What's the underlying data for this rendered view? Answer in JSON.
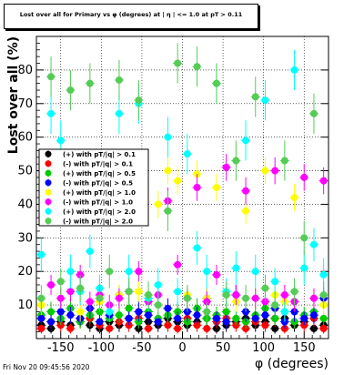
{
  "title": "Lost over all for Primary vs φ (degrees) at | η | <= 1.0 at pT > 0.11",
  "footer": "Fri Nov 20 09:45:56 2020",
  "chart_data": {
    "type": "scatter",
    "title": "Lost over all for Primary vs φ (degrees) at | η | <= 1.0 at pT > 0.11",
    "xlabel": "φ (degrees)",
    "ylabel": "Lost over all (%)",
    "xlim": [
      -180,
      180
    ],
    "ylim": [
      0,
      90
    ],
    "xticks": [
      -150,
      -100,
      -50,
      0,
      50,
      100,
      150
    ],
    "yticks": [
      10,
      20,
      30,
      40,
      50,
      60,
      70,
      80
    ],
    "grid": true,
    "legend_position": "left-middle",
    "series": [
      {
        "name": "(+) with pT/|q| > 0.1",
        "color": "#000000",
        "x": [
          -174,
          -162,
          -150,
          -138,
          -126,
          -114,
          -102,
          -90,
          -78,
          -66,
          -54,
          -42,
          -30,
          -18,
          -6,
          6,
          18,
          30,
          42,
          54,
          66,
          78,
          90,
          102,
          114,
          126,
          138,
          150,
          162,
          174
        ],
        "y": [
          4,
          3,
          5,
          4,
          6,
          4,
          3,
          5,
          4,
          6,
          3,
          5,
          4,
          6,
          5,
          4,
          5,
          6,
          3,
          4,
          5,
          6,
          4,
          5,
          3,
          6,
          4,
          5,
          3,
          4
        ],
        "err": [
          2,
          1.5,
          2,
          2,
          2.5,
          2,
          1.5,
          2,
          2,
          2.5,
          1.5,
          2,
          2,
          2.5,
          2,
          2,
          2,
          2.5,
          1.5,
          2,
          2,
          2.5,
          2,
          2,
          1.5,
          2.5,
          2,
          2,
          1.5,
          2
        ]
      },
      {
        "name": "(-) with pT/|q| > 0.1",
        "color": "#ff0000",
        "x": [
          -174,
          -162,
          -150,
          -138,
          -126,
          -114,
          -102,
          -90,
          -78,
          -66,
          -54,
          -42,
          -30,
          -18,
          -6,
          6,
          18,
          30,
          42,
          54,
          66,
          78,
          90,
          102,
          114,
          126,
          138,
          150,
          162,
          174
        ],
        "y": [
          3,
          5,
          4,
          3,
          5,
          6,
          4,
          3,
          5,
          4,
          6,
          3,
          5,
          4,
          3,
          6,
          4,
          3,
          5,
          6,
          4,
          3,
          5,
          4,
          6,
          3,
          5,
          4,
          6,
          3
        ],
        "err": [
          1.5,
          2,
          2,
          1.5,
          2,
          2.5,
          2,
          1.5,
          2,
          2,
          2.5,
          1.5,
          2,
          2,
          1.5,
          2.5,
          2,
          1.5,
          2,
          2.5,
          2,
          1.5,
          2,
          2,
          2.5,
          1.5,
          2,
          2,
          2.5,
          1.5
        ]
      },
      {
        "name": "(+) with pT/|q| > 0.5",
        "color": "#00cc00",
        "x": [
          -174,
          -162,
          -150,
          -138,
          -126,
          -114,
          -102,
          -90,
          -78,
          -66,
          -54,
          -42,
          -30,
          -18,
          -6,
          6,
          18,
          30,
          42,
          54,
          66,
          78,
          90,
          102,
          114,
          126,
          138,
          150,
          162,
          174
        ],
        "y": [
          7,
          8,
          6,
          9,
          5,
          7,
          8,
          6,
          7,
          9,
          5,
          8,
          6,
          7,
          8,
          5,
          9,
          6,
          7,
          8,
          6,
          5,
          7,
          9,
          6,
          8,
          5,
          7,
          8,
          6
        ],
        "err": [
          2.5,
          3,
          2,
          3,
          2,
          2.5,
          3,
          2,
          2.5,
          3,
          2,
          3,
          2,
          2.5,
          3,
          2,
          3,
          2,
          2.5,
          3,
          2,
          2,
          2.5,
          3,
          2,
          3,
          2,
          2.5,
          3,
          2
        ]
      },
      {
        "name": "(-) with pT/|q| > 0.5",
        "color": "#0000ff",
        "x": [
          -174,
          -162,
          -150,
          -138,
          -126,
          -114,
          -102,
          -90,
          -78,
          -66,
          -54,
          -42,
          -30,
          -18,
          -6,
          6,
          18,
          30,
          42,
          54,
          66,
          78,
          90,
          102,
          114,
          126,
          138,
          150,
          162,
          174
        ],
        "y": [
          6,
          5,
          8,
          7,
          6,
          9,
          5,
          7,
          13,
          6,
          8,
          7,
          5,
          9,
          6,
          8,
          7,
          12,
          6,
          5,
          13,
          8,
          6,
          7,
          9,
          5,
          8,
          6,
          7,
          12
        ],
        "err": [
          2,
          2,
          3,
          2.5,
          2,
          3,
          2,
          2.5,
          3,
          2,
          3,
          2.5,
          2,
          3,
          2,
          3,
          2.5,
          3,
          2,
          2,
          3,
          3,
          2,
          2.5,
          3,
          2,
          3,
          2,
          2.5,
          3
        ]
      },
      {
        "name": "(+) with pT/|q| > 1.0",
        "color": "#ffff00",
        "x": [
          -174,
          -150,
          -126,
          -102,
          -78,
          -54,
          -30,
          -18,
          -6,
          6,
          18,
          30,
          42,
          54,
          66,
          78,
          90,
          102,
          114,
          126,
          138,
          150,
          162,
          174
        ],
        "y": [
          10,
          12,
          8,
          11,
          13,
          14,
          40,
          50,
          47,
          13,
          49,
          12,
          45,
          14,
          11,
          38,
          12,
          50,
          13,
          11,
          42,
          21,
          12,
          10
        ],
        "err": [
          3,
          3,
          3,
          3,
          3,
          3,
          4,
          4,
          4,
          3,
          4,
          3,
          4,
          3,
          3,
          4,
          3,
          4,
          3,
          3,
          4,
          4,
          3,
          3
        ]
      },
      {
        "name": "(-) with pT/|q| > 1.0",
        "color": "#ff00ff",
        "x": [
          -162,
          -150,
          -138,
          -126,
          -114,
          -102,
          -90,
          -78,
          -66,
          -54,
          -42,
          -30,
          -18,
          -6,
          6,
          18,
          30,
          42,
          54,
          66,
          78,
          90,
          102,
          114,
          126,
          138,
          150,
          162,
          174
        ],
        "y": [
          16,
          12,
          14,
          19,
          11,
          13,
          10,
          12,
          14,
          20,
          11,
          13,
          41,
          22,
          12,
          45,
          11,
          19,
          51,
          13,
          44,
          12,
          11,
          50,
          13,
          11,
          48,
          12,
          47
        ],
        "err": [
          3,
          3,
          3,
          3,
          3,
          3,
          3,
          3,
          3,
          3,
          3,
          3,
          4,
          3,
          3,
          4,
          3,
          3,
          4,
          3,
          4,
          3,
          3,
          4,
          3,
          3,
          4,
          3,
          4
        ]
      },
      {
        "name": "(+) with pT/|q| > 2.0",
        "color": "#00ffff",
        "x": [
          -174,
          -162,
          -150,
          -138,
          -126,
          -114,
          -102,
          -90,
          -78,
          -66,
          -54,
          -42,
          -30,
          -18,
          -6,
          6,
          18,
          30,
          42,
          54,
          66,
          78,
          90,
          102,
          114,
          126,
          138,
          150,
          162,
          174
        ],
        "y": [
          25,
          67,
          59,
          20,
          14,
          26,
          15,
          8,
          67,
          20,
          70,
          12,
          16,
          60,
          14,
          55,
          27,
          20,
          76,
          14,
          21,
          59,
          20,
          71,
          17,
          8,
          80,
          21,
          28,
          19
        ],
        "err": [
          5,
          6,
          6,
          5,
          4,
          5,
          4,
          3,
          6,
          5,
          6,
          4,
          5,
          6,
          4,
          6,
          5,
          5,
          6,
          4,
          5,
          6,
          5,
          6,
          4,
          3,
          6,
          5,
          5,
          5
        ]
      },
      {
        "name": "(-) with pT/|q| > 2.0",
        "color": "#55cc55",
        "x": [
          -174,
          -162,
          -150,
          -138,
          -126,
          -114,
          -102,
          -90,
          -78,
          -66,
          -54,
          -42,
          -30,
          -18,
          -6,
          6,
          18,
          30,
          42,
          54,
          66,
          78,
          90,
          102,
          114,
          126,
          138,
          150,
          162,
          174
        ],
        "y": [
          12,
          78,
          17,
          74,
          15,
          76,
          12,
          20,
          77,
          14,
          71,
          13,
          10,
          38,
          82,
          12,
          81,
          8,
          76,
          13,
          53,
          12,
          72,
          15,
          10,
          53,
          14,
          30,
          67,
          13
        ],
        "err": [
          4,
          6,
          4,
          6,
          4,
          6,
          4,
          5,
          6,
          4,
          6,
          4,
          4,
          6,
          6,
          4,
          6,
          3,
          6,
          4,
          6,
          4,
          6,
          4,
          4,
          6,
          4,
          5,
          6,
          4
        ]
      }
    ]
  }
}
